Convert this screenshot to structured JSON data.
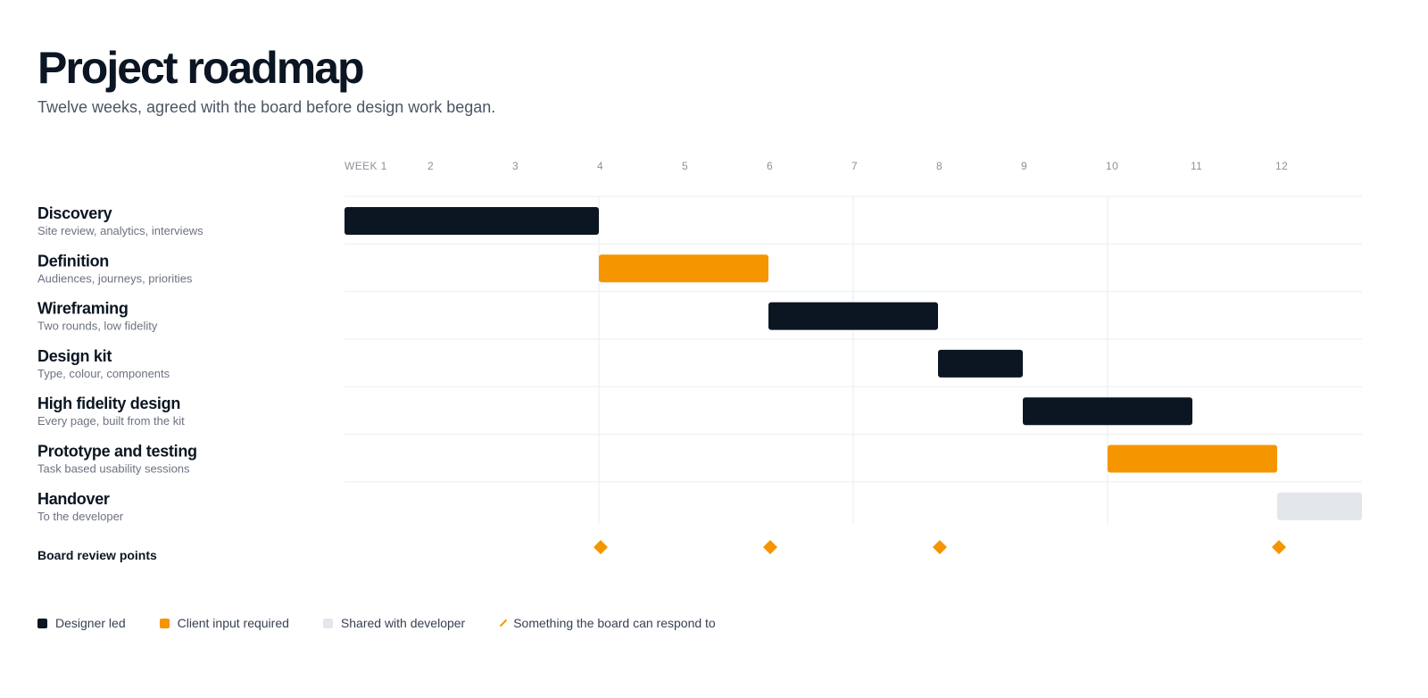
{
  "page": {
    "title": "Project roadmap",
    "subtitle": "Twelve weeks, agreed with the board before design work began."
  },
  "colors": {
    "designer": "#0b1622",
    "client": "#f59500",
    "shared": "#e3e6ea",
    "milestone": "#f59500"
  },
  "chart_data": {
    "type": "gantt",
    "week_labels": [
      "WEEK 1",
      "2",
      "3",
      "4",
      "5",
      "6",
      "7",
      "8",
      "9",
      "10",
      "11",
      "12"
    ],
    "x_range": [
      1,
      13
    ],
    "tasks": [
      {
        "name": "Discovery",
        "description": "Site review, analytics, interviews",
        "start": 1,
        "end": 4,
        "category": "designer"
      },
      {
        "name": "Definition",
        "description": "Audiences, journeys, priorities",
        "start": 4,
        "end": 6,
        "category": "client"
      },
      {
        "name": "Wireframing",
        "description": "Two rounds, low fidelity",
        "start": 6,
        "end": 8,
        "category": "designer"
      },
      {
        "name": "Design kit",
        "description": "Type, colour, components",
        "start": 8,
        "end": 9,
        "category": "designer"
      },
      {
        "name": "High fidelity design",
        "description": "Every page, built from the kit",
        "start": 9,
        "end": 11,
        "category": "designer"
      },
      {
        "name": "Prototype and testing",
        "description": "Task based usability sessions",
        "start": 10,
        "end": 12,
        "category": "client"
      },
      {
        "name": "Handover",
        "description": "To the developer",
        "start": 12,
        "end": 13,
        "category": "shared"
      }
    ],
    "milestones_label": "Board review points",
    "milestones": [
      4,
      6,
      8,
      12
    ],
    "legend": [
      {
        "key": "designer",
        "label": "Designer led"
      },
      {
        "key": "client",
        "label": "Client input required"
      },
      {
        "key": "shared",
        "label": "Shared with developer"
      },
      {
        "key": "milestone",
        "label": "Something the board can respond to"
      }
    ]
  }
}
